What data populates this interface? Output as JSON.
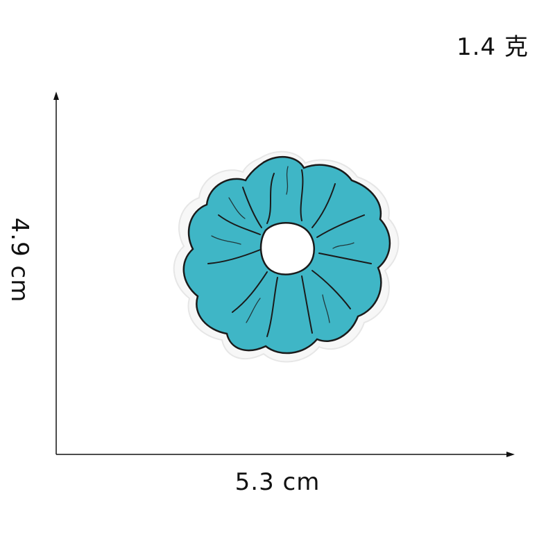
{
  "weight": {
    "text": "1.4 克"
  },
  "dimensions": {
    "height_text": "4.9 cm",
    "width_text": "5.3 cm"
  },
  "product": {
    "color": "#3fb6c6",
    "outline_color": "#1a1a1a",
    "backing_color": "#f5f5f5"
  }
}
